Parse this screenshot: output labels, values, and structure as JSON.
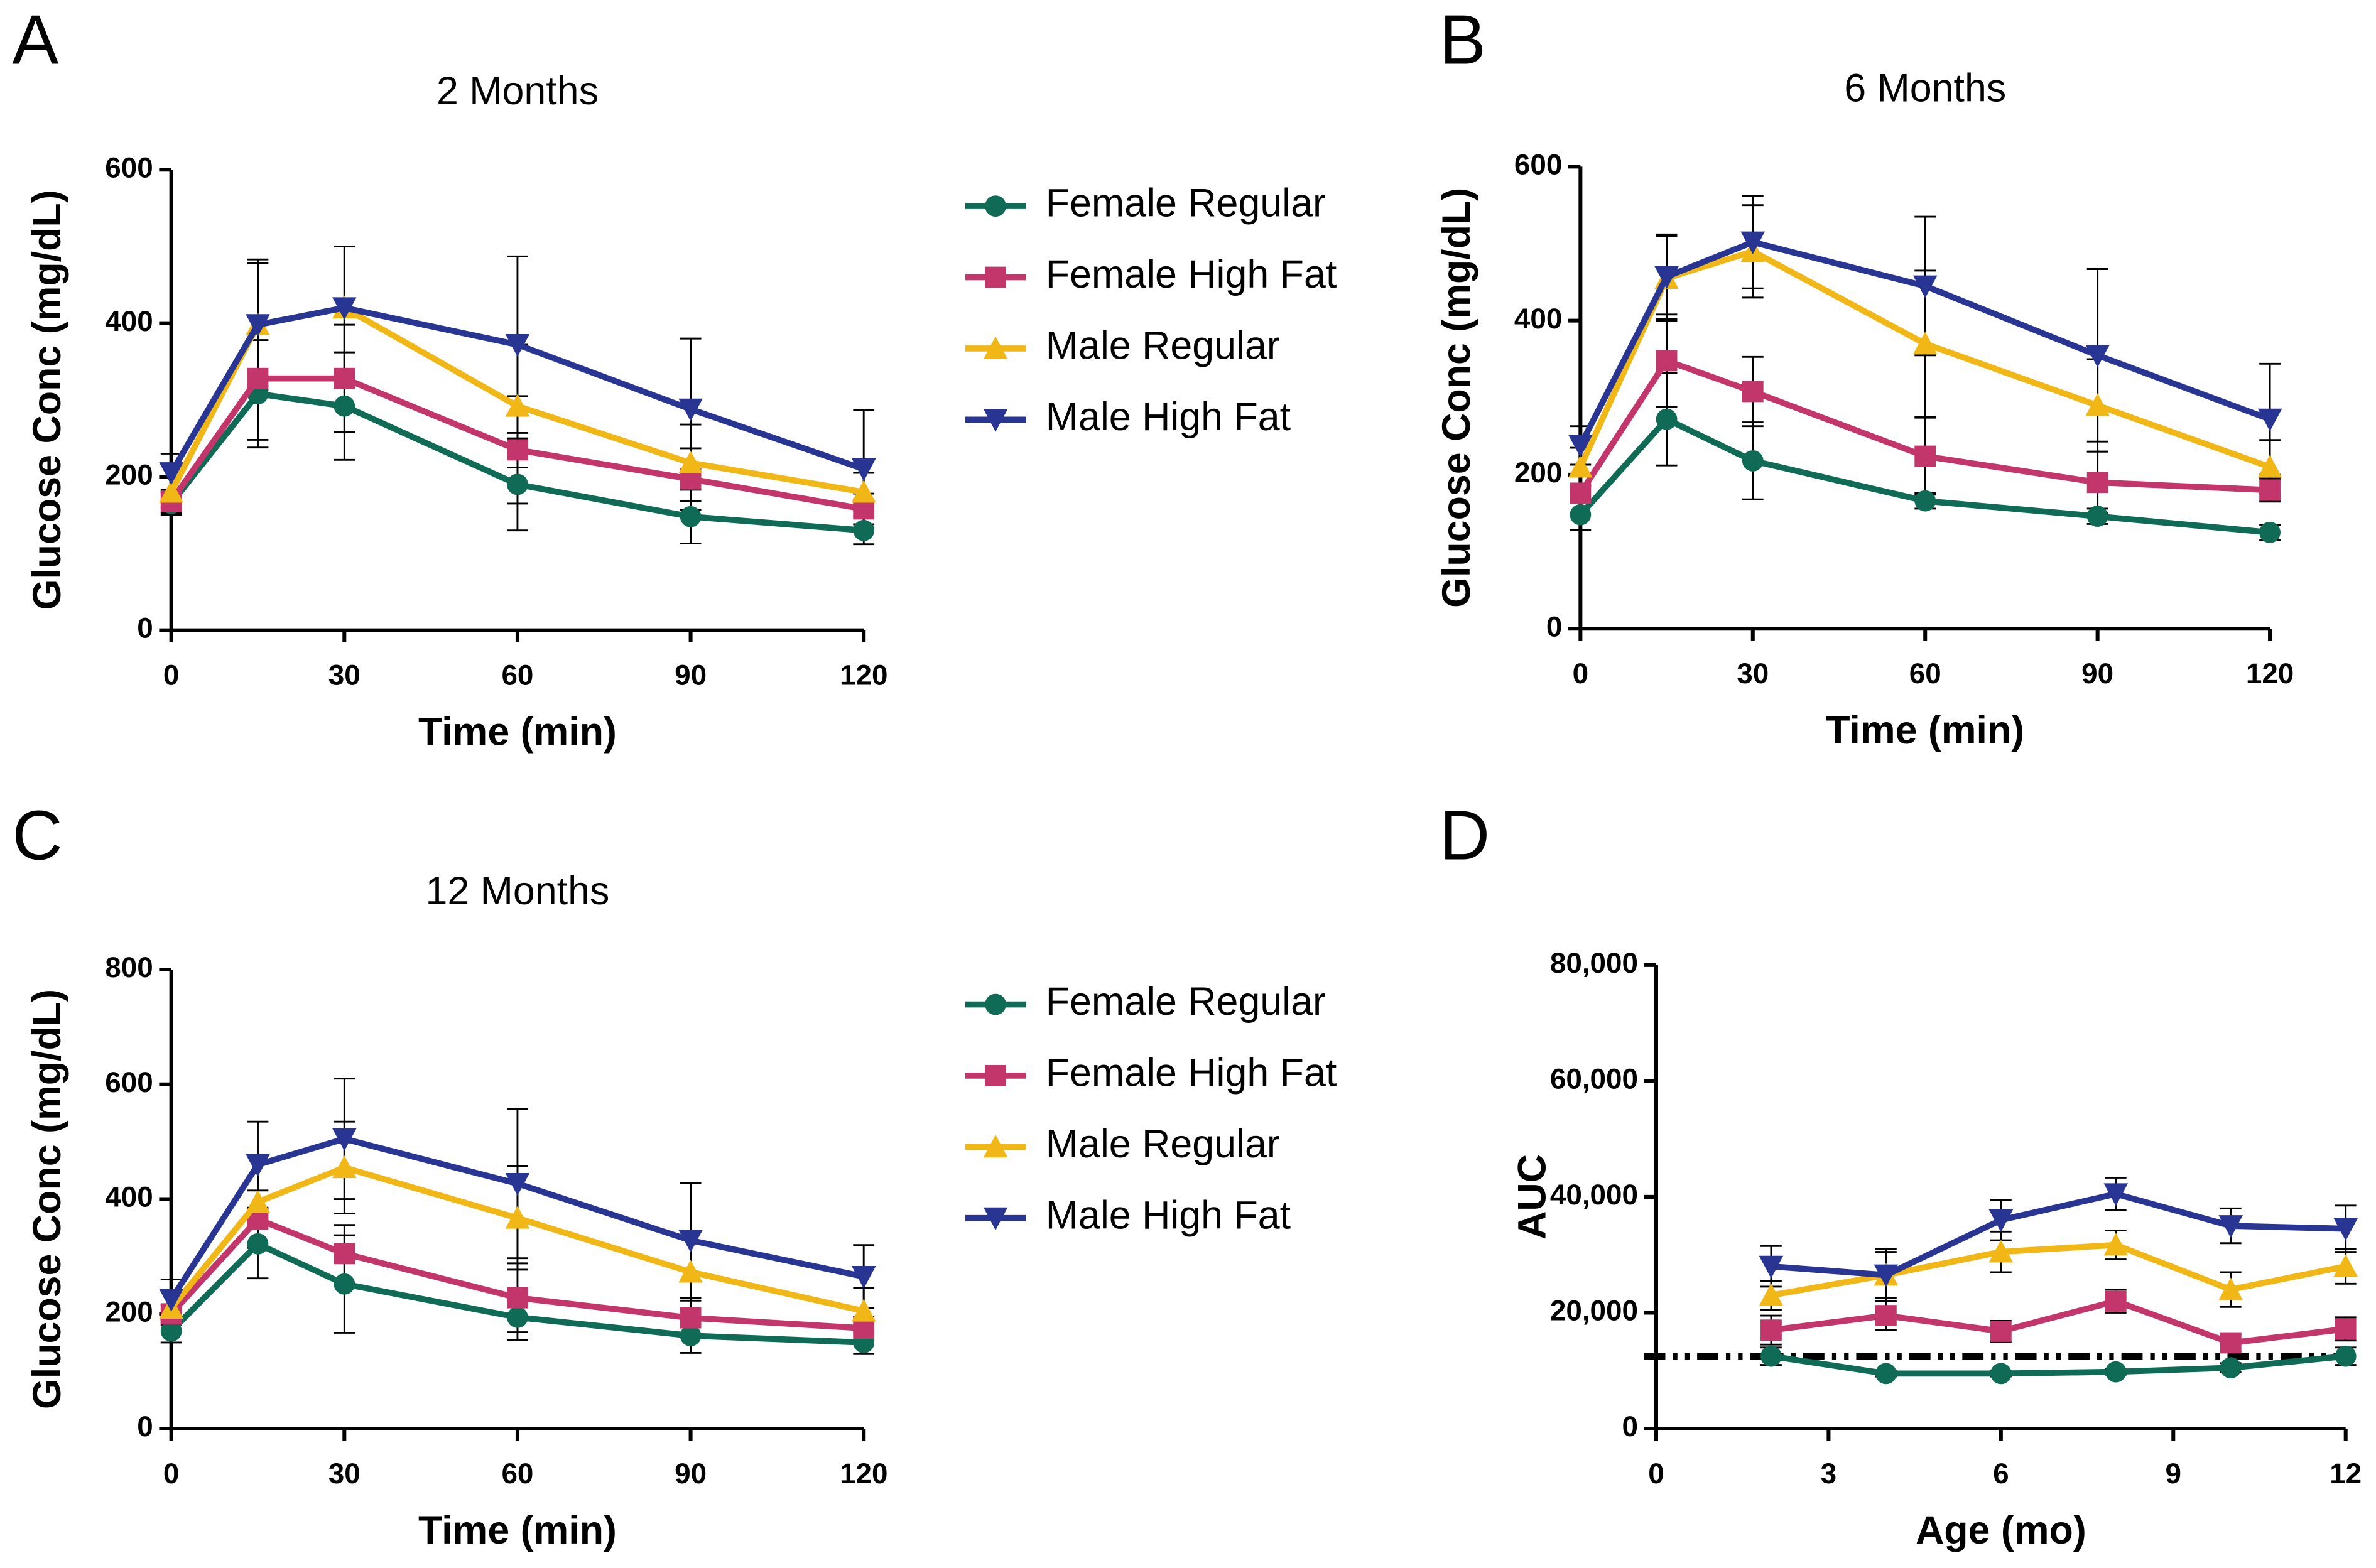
{
  "chart_data": [
    {
      "type": "line",
      "label": "A",
      "title": "2 Months",
      "xlabel": "Time (min)",
      "ylabel": "Glucose Conc (mg/dL)",
      "x": [
        0,
        15,
        30,
        60,
        90,
        120
      ],
      "xlim": [
        0,
        120
      ],
      "xticks": [
        0,
        30,
        60,
        90,
        120
      ],
      "ylim": [
        0,
        600
      ],
      "yticks": [
        0,
        200,
        400,
        600
      ],
      "legend": "right",
      "series": [
        {
          "name": "Female Regular",
          "color": "#0f6b55",
          "marker": "circle",
          "values": [
            165,
            308,
            292,
            190,
            148,
            130
          ],
          "errors": [
            15,
            70,
            70,
            60,
            35,
            18
          ]
        },
        {
          "name": "Female High Fat",
          "color": "#c2366c",
          "marker": "square",
          "values": [
            168,
            328,
            328,
            235,
            197,
            158
          ],
          "errors": [
            15,
            80,
            70,
            70,
            40,
            20
          ]
        },
        {
          "name": "Male Regular",
          "color": "#f0b716",
          "marker": "triangle-up",
          "values": [
            180,
            398,
            420,
            292,
            218,
            180
          ],
          "errors": [
            20,
            80,
            80,
            80,
            50,
            25
          ]
        },
        {
          "name": "Male High Fat",
          "color": "#283593",
          "marker": "triangle-down",
          "values": [
            205,
            398,
            420,
            372,
            288,
            210
          ],
          "errors": [
            25,
            85,
            80,
            115,
            92,
            77
          ]
        }
      ]
    },
    {
      "type": "line",
      "label": "B",
      "title": "6 Months",
      "xlabel": "Time (min)",
      "ylabel": "Glucose Conc (mg/dL)",
      "x": [
        0,
        15,
        30,
        60,
        90,
        120
      ],
      "xlim": [
        0,
        120
      ],
      "xticks": [
        0,
        30,
        60,
        90,
        120
      ],
      "ylim": [
        0,
        600
      ],
      "yticks": [
        0,
        200,
        400,
        600
      ],
      "series": [
        {
          "name": "Female Regular",
          "color": "#0f6b55",
          "marker": "circle",
          "values": [
            148,
            272,
            218,
            166,
            146,
            125
          ],
          "errors": [
            20,
            60,
            50,
            10,
            10,
            10
          ]
        },
        {
          "name": "Female High Fat",
          "color": "#c2366c",
          "marker": "square",
          "values": [
            176,
            348,
            308,
            224,
            190,
            180
          ],
          "errors": [
            10,
            60,
            45,
            50,
            40,
            15
          ]
        },
        {
          "name": "Male Regular",
          "color": "#f0b716",
          "marker": "triangle-up",
          "values": [
            210,
            455,
            490,
            370,
            290,
            210
          ],
          "errors": [
            25,
            55,
            60,
            95,
            60,
            35
          ]
        },
        {
          "name": "Male High Fat",
          "color": "#283593",
          "marker": "triangle-down",
          "values": [
            238,
            457,
            502,
            445,
            355,
            272
          ],
          "errors": [
            25,
            55,
            60,
            90,
            112,
            72
          ]
        }
      ]
    },
    {
      "type": "line",
      "label": "C",
      "title": "12 Months",
      "xlabel": "Time (min)",
      "ylabel": "Glucose Conc (mg/dL)",
      "x": [
        0,
        15,
        30,
        60,
        90,
        120
      ],
      "xlim": [
        0,
        120
      ],
      "xticks": [
        0,
        30,
        60,
        90,
        120
      ],
      "ylim": [
        0,
        800
      ],
      "yticks": [
        0,
        200,
        400,
        600,
        800
      ],
      "legend": "right",
      "series": [
        {
          "name": "Female Regular",
          "color": "#0f6b55",
          "marker": "circle",
          "values": [
            170,
            322,
            252,
            194,
            162,
            150
          ],
          "errors": [
            20,
            60,
            85,
            40,
            30,
            20
          ]
        },
        {
          "name": "Female High Fat",
          "color": "#c2366c",
          "marker": "square",
          "values": [
            200,
            365,
            305,
            228,
            193,
            175
          ],
          "errors": [
            15,
            50,
            50,
            60,
            30,
            20
          ]
        },
        {
          "name": "Male Regular",
          "color": "#f0b716",
          "marker": "triangle-up",
          "values": [
            210,
            395,
            455,
            367,
            273,
            205
          ],
          "errors": [
            30,
            80,
            80,
            90,
            70,
            40
          ]
        },
        {
          "name": "Male High Fat",
          "color": "#283593",
          "marker": "triangle-down",
          "values": [
            225,
            460,
            505,
            427,
            328,
            265
          ],
          "errors": [
            35,
            75,
            105,
            130,
            100,
            55
          ]
        }
      ]
    },
    {
      "type": "line",
      "label": "D",
      "xlabel": "Age (mo)",
      "ylabel": "AUC",
      "x": [
        2,
        4,
        6,
        8,
        10,
        12
      ],
      "xlim": [
        0,
        12
      ],
      "xticks": [
        0,
        3,
        6,
        9,
        12
      ],
      "ylim": [
        0,
        80000
      ],
      "yticks": [
        0,
        {
          "value": 20000,
          "label": "20,000"
        },
        {
          "value": 40000,
          "label": "40,000"
        },
        {
          "value": 60000,
          "label": "60,000"
        },
        {
          "value": 80000,
          "label": "80,000"
        }
      ],
      "hline": 12500,
      "series": [
        {
          "name": "Female Regular",
          "color": "#0f6b55",
          "marker": "circle",
          "values": [
            12500,
            9500,
            9500,
            9800,
            10500,
            12500
          ],
          "errors": [
            1500,
            500,
            500,
            500,
            800,
            1500
          ]
        },
        {
          "name": "Female High Fat",
          "color": "#c2366c",
          "marker": "square",
          "values": [
            17000,
            19500,
            16800,
            22000,
            14800,
            17200
          ],
          "errors": [
            2500,
            2500,
            1800,
            2000,
            1500,
            2000
          ]
        },
        {
          "name": "Male Regular",
          "color": "#f0b716",
          "marker": "triangle-up",
          "values": [
            23000,
            26500,
            30500,
            31700,
            24000,
            28000
          ],
          "errors": [
            2500,
            4000,
            3500,
            2500,
            3000,
            3000
          ]
        },
        {
          "name": "Male High Fat",
          "color": "#283593",
          "marker": "triangle-down",
          "values": [
            28000,
            26500,
            36000,
            40500,
            35000,
            34500
          ],
          "errors": [
            3500,
            4500,
            3500,
            2800,
            3000,
            4000
          ]
        }
      ]
    }
  ]
}
